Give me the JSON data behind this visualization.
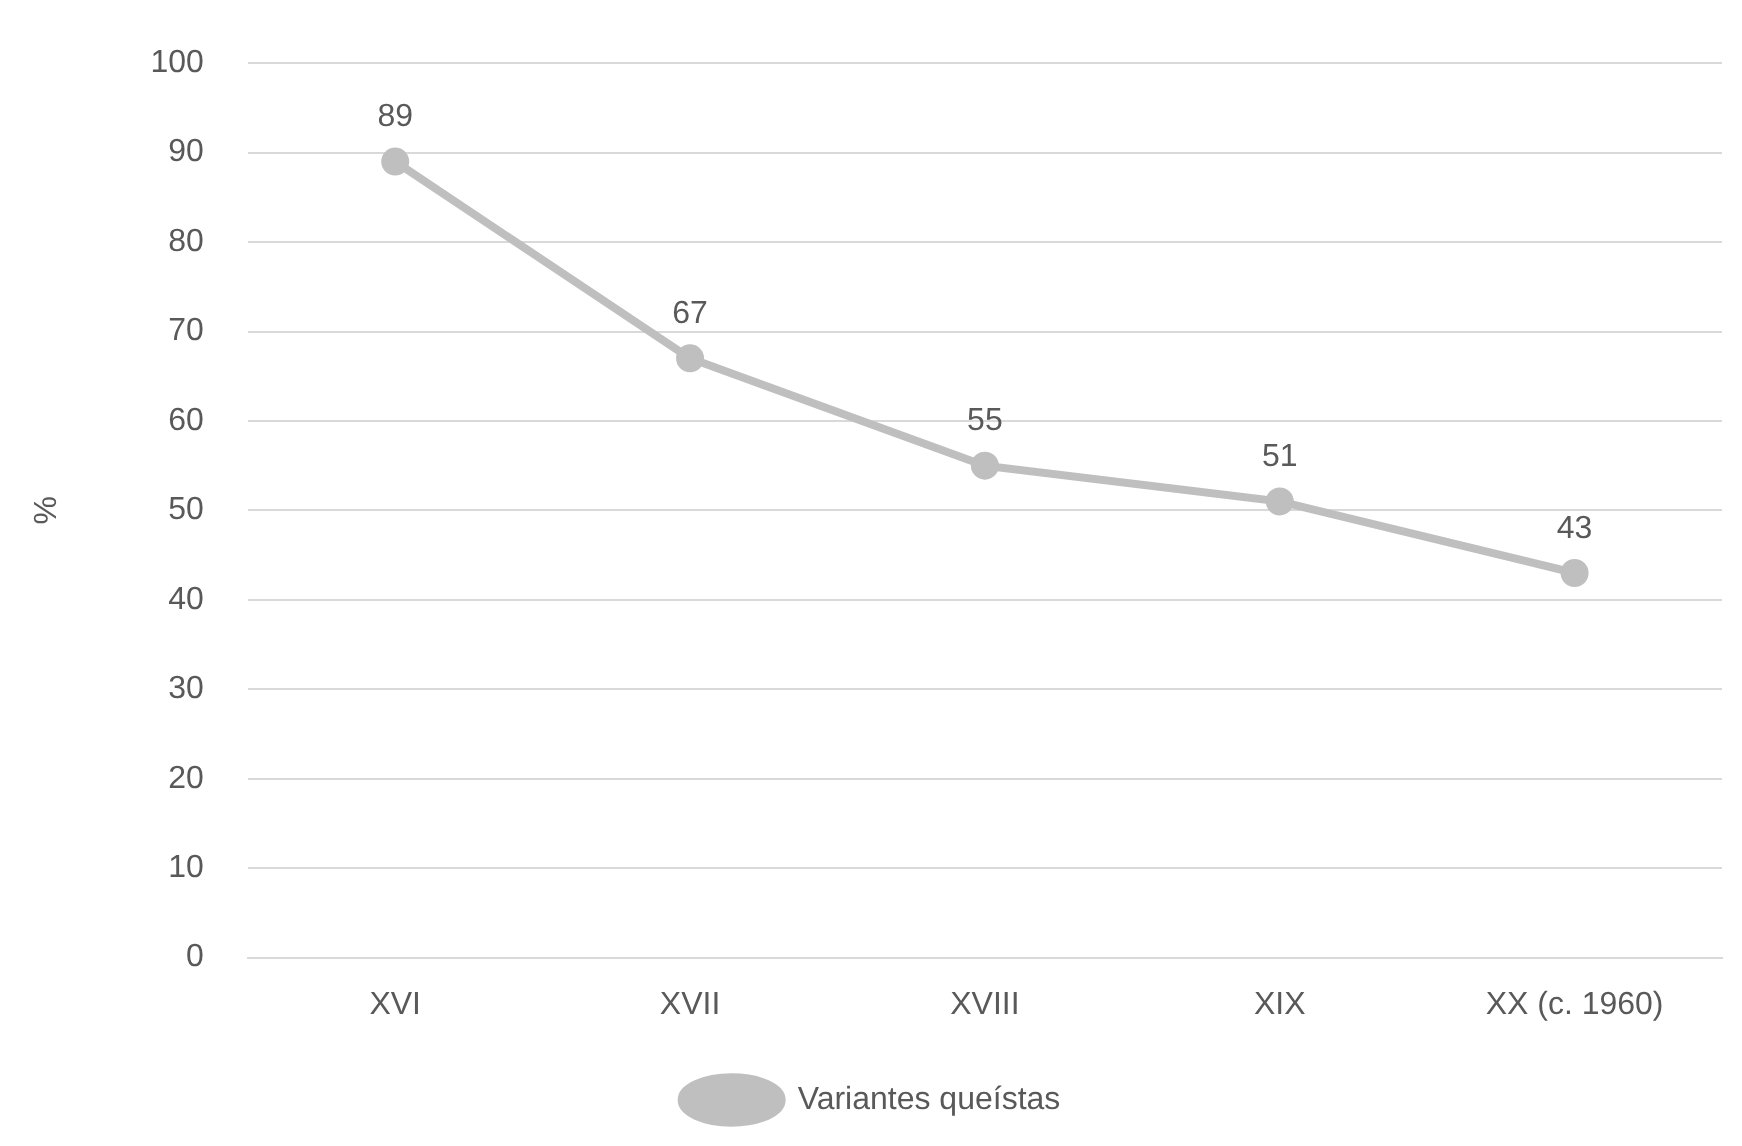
{
  "chart_data": {
    "type": "line",
    "ylabel": "%",
    "categories": [
      "XVI",
      "XVII",
      "XVIII",
      "XIX",
      "XX (c. 1960)"
    ],
    "series": [
      {
        "name": "Variantes queístas",
        "color": "#bfbfbf",
        "values": [
          89,
          67,
          55,
          51,
          43
        ]
      }
    ],
    "ylim": [
      0,
      100
    ],
    "yticks": [
      0,
      10,
      20,
      30,
      40,
      50,
      60,
      70,
      80,
      90,
      100
    ],
    "grid": "y",
    "legend": "bottom",
    "marker": "circle",
    "line_style": "solid",
    "data_labels": true
  }
}
